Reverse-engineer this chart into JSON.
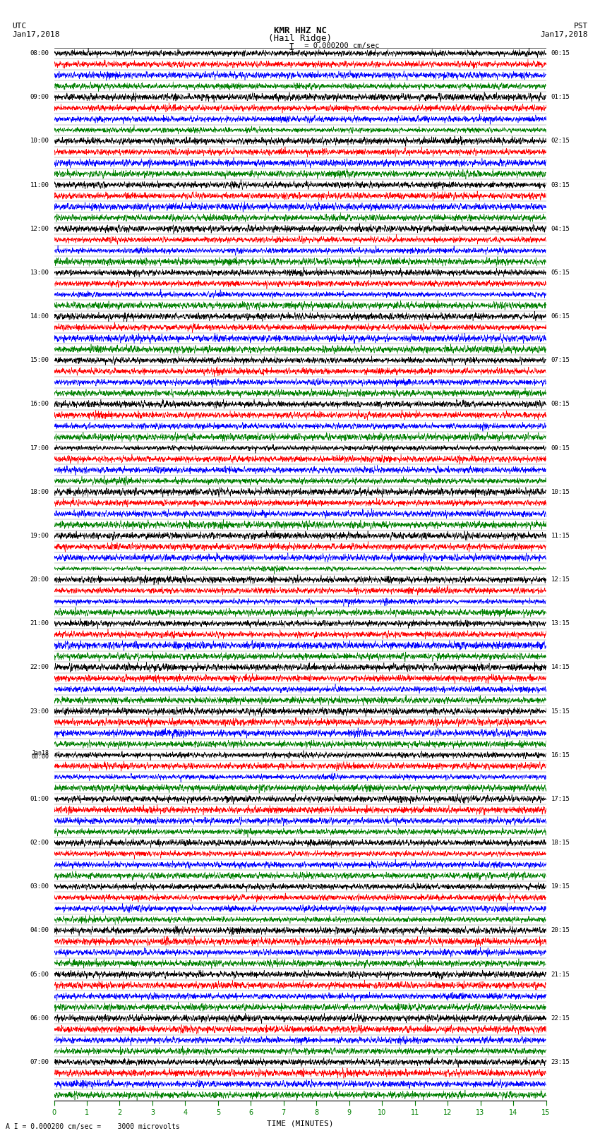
{
  "title_line1": "KMR HHZ NC",
  "title_line2": "(Hail Ridge)",
  "scale_text": "I = 0.000200 cm/sec",
  "utc_label": "UTC",
  "utc_date": "Jan17,2018",
  "pst_label": "PST",
  "pst_date": "Jan17,2018",
  "xlabel": "TIME (MINUTES)",
  "scale_footnote": "A I = 0.000200 cm/sec =    3000 microvolts",
  "bg_color": "#ffffff",
  "trace_colors": [
    "black",
    "red",
    "blue",
    "green"
  ],
  "left_times": [
    "08:00",
    "",
    "",
    "",
    "09:00",
    "",
    "",
    "",
    "10:00",
    "",
    "",
    "",
    "11:00",
    "",
    "",
    "",
    "12:00",
    "",
    "",
    "",
    "13:00",
    "",
    "",
    "",
    "14:00",
    "",
    "",
    "",
    "15:00",
    "",
    "",
    "",
    "16:00",
    "",
    "",
    "",
    "17:00",
    "",
    "",
    "",
    "18:00",
    "",
    "",
    "",
    "19:00",
    "",
    "",
    "",
    "20:00",
    "",
    "",
    "",
    "21:00",
    "",
    "",
    "",
    "22:00",
    "",
    "",
    "",
    "23:00",
    "",
    "",
    "",
    "Jan18\n00:00",
    "",
    "",
    "",
    "01:00",
    "",
    "",
    "",
    "02:00",
    "",
    "",
    "",
    "03:00",
    "",
    "",
    "",
    "04:00",
    "",
    "",
    "",
    "05:00",
    "",
    "",
    "",
    "06:00",
    "",
    "",
    "",
    "07:00",
    "",
    "",
    ""
  ],
  "right_times": [
    "00:15",
    "",
    "",
    "",
    "01:15",
    "",
    "",
    "",
    "02:15",
    "",
    "",
    "",
    "03:15",
    "",
    "",
    "",
    "04:15",
    "",
    "",
    "",
    "05:15",
    "",
    "",
    "",
    "06:15",
    "",
    "",
    "",
    "07:15",
    "",
    "",
    "",
    "08:15",
    "",
    "",
    "",
    "09:15",
    "",
    "",
    "",
    "10:15",
    "",
    "",
    "",
    "11:15",
    "",
    "",
    "",
    "12:15",
    "",
    "",
    "",
    "13:15",
    "",
    "",
    "",
    "14:15",
    "",
    "",
    "",
    "15:15",
    "",
    "",
    "",
    "16:15",
    "",
    "",
    "",
    "17:15",
    "",
    "",
    "",
    "18:15",
    "",
    "",
    "",
    "19:15",
    "",
    "",
    "",
    "20:15",
    "",
    "",
    "",
    "21:15",
    "",
    "",
    "",
    "22:15",
    "",
    "",
    "",
    "23:15",
    "",
    "",
    ""
  ],
  "n_rows": 96,
  "n_cols": 4,
  "xmin": 0,
  "xmax": 15,
  "xticks": [
    0,
    1,
    2,
    3,
    4,
    5,
    6,
    7,
    8,
    9,
    10,
    11,
    12,
    13,
    14,
    15
  ],
  "amplitude": 0.48,
  "seed": 42
}
